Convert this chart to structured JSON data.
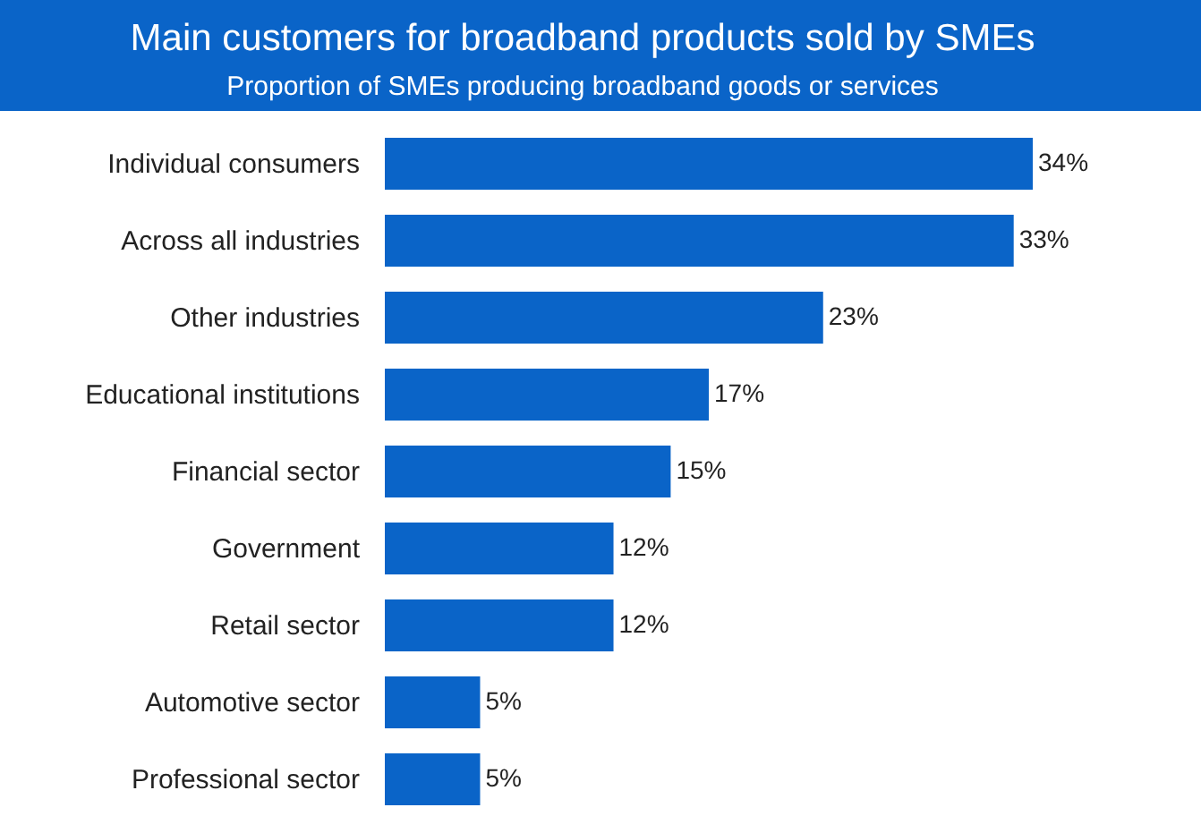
{
  "chart_data": {
    "type": "bar",
    "orientation": "horizontal",
    "title": "Main customers for broadband products sold by SMEs",
    "subtitle": "Proportion of SMEs producing broadband goods or services",
    "categories": [
      "Individual consumers",
      "Across all industries",
      "Other industries",
      "Educational institutions",
      "Financial sector",
      "Government",
      "Retail sector",
      "Automotive sector",
      "Professional sector"
    ],
    "values": [
      34,
      33,
      23,
      17,
      15,
      12,
      12,
      5,
      5
    ],
    "value_labels": [
      "34%",
      "33%",
      "23%",
      "17%",
      "15%",
      "12%",
      "12%",
      "5%",
      "5%"
    ],
    "color": "#0a64c8",
    "grid": false
  }
}
